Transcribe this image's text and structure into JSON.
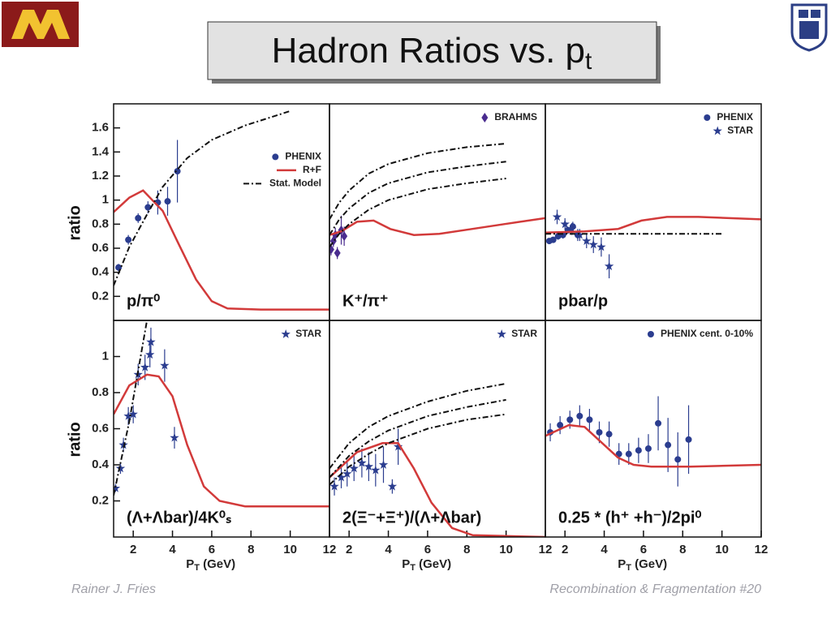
{
  "header": {
    "title": "Hadron Ratios vs. p",
    "title_sub": "t"
  },
  "footer": {
    "author": "Rainer J. Fries",
    "slide": "Recombination & Fragmentation  #20"
  },
  "chart_data": [
    {
      "type": "line",
      "label": "p/π⁰",
      "ylabel": "ratio",
      "legend": "right",
      "xlim": [
        1,
        12
      ],
      "ylim": [
        0,
        1.8
      ],
      "yticks": [
        0.2,
        0.4,
        0.6,
        0.8,
        1.0,
        1.2,
        1.4,
        1.6
      ],
      "series": [
        {
          "name": "PHENIX",
          "mark": "dot",
          "color": "#2b3d8f",
          "x": [
            1.25,
            1.75,
            2.25,
            2.75,
            3.25,
            3.75,
            4.25
          ],
          "values": [
            0.44,
            0.67,
            0.85,
            0.94,
            0.98,
            0.99,
            1.24
          ],
          "errors": [
            0.03,
            0.04,
            0.04,
            0.05,
            0.1,
            0.12,
            0.26
          ]
        },
        {
          "name": "R+F",
          "mark": "line",
          "color": "#d23a3a",
          "x": [
            1,
            1.8,
            2.5,
            3.5,
            4.3,
            5.2,
            6,
            6.8,
            8.5,
            12
          ],
          "values": [
            0.9,
            1.02,
            1.08,
            0.91,
            0.64,
            0.34,
            0.16,
            0.1,
            0.09,
            0.09
          ]
        },
        {
          "name": "Stat. Model",
          "mark": "dashdot",
          "color": "#111111",
          "x": [
            1,
            1.8,
            2.7,
            3.5,
            4.75,
            6,
            7.7,
            10
          ],
          "values": [
            0.29,
            0.61,
            0.88,
            1.11,
            1.35,
            1.5,
            1.62,
            1.74
          ]
        }
      ]
    },
    {
      "type": "line",
      "label": "K⁺/π⁺",
      "legend": "upper right",
      "xlim": [
        1,
        12
      ],
      "ylim": [
        0,
        1.8
      ],
      "series": [
        {
          "name": "BRAHMS",
          "mark": "diamond",
          "color": "#4a2c8f",
          "x": [
            1.08,
            1.2,
            1.3,
            1.4,
            1.6,
            1.75
          ],
          "values": [
            0.59,
            0.66,
            0.71,
            0.56,
            0.75,
            0.7
          ],
          "errors": [
            0.05,
            0.05,
            0.06,
            0.05,
            0.12,
            0.08
          ]
        },
        {
          "mark": "line",
          "color": "#d23a3a",
          "x": [
            1,
            1.6,
            2.4,
            3.25,
            4.1,
            5.3,
            6.6,
            8.25,
            9.9,
            12
          ],
          "values": [
            0.71,
            0.74,
            0.82,
            0.83,
            0.76,
            0.71,
            0.72,
            0.76,
            0.8,
            0.85
          ]
        },
        {
          "mark": "dashdot",
          "color": "#111111",
          "x": [
            1,
            1.5,
            2,
            3,
            4,
            6,
            8,
            10
          ],
          "values": [
            0.84,
            0.98,
            1.08,
            1.22,
            1.3,
            1.39,
            1.44,
            1.47
          ]
        },
        {
          "mark": "dashdot",
          "color": "#111111",
          "x": [
            1,
            1.5,
            2,
            3,
            4,
            6,
            8,
            10
          ],
          "values": [
            0.71,
            0.84,
            0.93,
            1.06,
            1.14,
            1.23,
            1.28,
            1.32
          ]
        },
        {
          "mark": "dashdot",
          "color": "#111111",
          "x": [
            1,
            1.5,
            2,
            3,
            4,
            6,
            8,
            10
          ],
          "values": [
            0.61,
            0.72,
            0.8,
            0.92,
            1.0,
            1.09,
            1.14,
            1.18
          ]
        }
      ]
    },
    {
      "type": "line",
      "label": "pbar/p",
      "legend": "upper right",
      "xlim": [
        1,
        12
      ],
      "ylim": [
        0,
        1.8
      ],
      "series": [
        {
          "name": "PHENIX",
          "mark": "dot",
          "color": "#2b3d8f",
          "x": [
            1.2,
            1.4,
            1.65,
            1.9,
            2.15,
            2.4,
            2.65
          ],
          "values": [
            0.66,
            0.67,
            0.7,
            0.71,
            0.75,
            0.78,
            0.71
          ],
          "errors": [
            0.02,
            0.02,
            0.03,
            0.03,
            0.03,
            0.04,
            0.05
          ]
        },
        {
          "name": "STAR",
          "mark": "star",
          "color": "#2b3d8f",
          "x": [
            1.6,
            2,
            2.35,
            2.75,
            3.1,
            3.45,
            3.85,
            4.25
          ],
          "values": [
            0.86,
            0.8,
            0.76,
            0.71,
            0.66,
            0.63,
            0.61,
            0.45
          ],
          "errors": [
            0.06,
            0.05,
            0.05,
            0.05,
            0.06,
            0.07,
            0.08,
            0.1
          ]
        },
        {
          "mark": "line",
          "color": "#d23a3a",
          "x": [
            1,
            3,
            4.7,
            5.9,
            7.2,
            8.8,
            12
          ],
          "values": [
            0.73,
            0.74,
            0.76,
            0.83,
            0.86,
            0.86,
            0.84
          ]
        },
        {
          "mark": "dashdot",
          "color": "#111111",
          "x": [
            1,
            10
          ],
          "values": [
            0.72,
            0.72
          ]
        }
      ]
    },
    {
      "type": "line",
      "label": "(Λ+Λbar)/4K⁰ₛ",
      "ylabel": "ratio",
      "xlabel": "P",
      "xlabel_sub": "T",
      "xlabel_rest": " (GeV)",
      "legend": "upper right",
      "xlim": [
        1,
        12
      ],
      "ylim": [
        0,
        1.2
      ],
      "yticks": [
        0.2,
        0.4,
        0.6,
        0.8,
        1.0
      ],
      "xticks": [
        2,
        4,
        6,
        8,
        10,
        12
      ],
      "series": [
        {
          "name": "STAR",
          "mark": "star",
          "color": "#2b3d8f",
          "x": [
            1.1,
            1.35,
            1.5,
            1.75,
            2,
            2.25,
            2.6,
            2.85,
            2.9,
            3.6,
            4.1
          ],
          "values": [
            0.27,
            0.38,
            0.51,
            0.67,
            0.68,
            0.9,
            0.94,
            1.01,
            1.08,
            0.95,
            0.55
          ],
          "errors": [
            0.02,
            0.03,
            0.04,
            0.05,
            0.05,
            0.06,
            0.07,
            0.07,
            0.08,
            0.09,
            0.06
          ]
        },
        {
          "mark": "line",
          "color": "#d23a3a",
          "x": [
            1,
            1.8,
            2.7,
            3.3,
            4,
            4.75,
            5.6,
            6.4,
            7.7,
            12
          ],
          "values": [
            0.68,
            0.84,
            0.9,
            0.89,
            0.78,
            0.51,
            0.28,
            0.2,
            0.17,
            0.17
          ]
        },
        {
          "mark": "dashdot",
          "color": "#111111",
          "x": [
            1,
            1.8,
            2.7
          ],
          "values": [
            0.23,
            0.64,
            1.2
          ]
        }
      ]
    },
    {
      "type": "line",
      "label": "2(Ξ⁻+Ξ⁺)/(Λ+Λbar)",
      "xlabel": "P",
      "xlabel_sub": "T",
      "xlabel_rest": " (GeV)",
      "legend": "upper right",
      "xlim": [
        1,
        12
      ],
      "ylim": [
        0,
        1.2
      ],
      "xticks": [
        2,
        4,
        6,
        8,
        10,
        12
      ],
      "series": [
        {
          "name": "STAR",
          "mark": "star",
          "color": "#2b3d8f",
          "x": [
            1.25,
            1.6,
            1.9,
            2.25,
            2.65,
            3,
            3.35,
            3.75,
            4.2,
            4.5
          ],
          "values": [
            0.28,
            0.33,
            0.35,
            0.38,
            0.41,
            0.39,
            0.37,
            0.4,
            0.28,
            0.5
          ],
          "errors": [
            0.05,
            0.06,
            0.07,
            0.07,
            0.08,
            0.08,
            0.09,
            0.1,
            0.04,
            0.1
          ]
        },
        {
          "mark": "line",
          "color": "#d23a3a",
          "x": [
            1,
            2.4,
            3.7,
            4.5,
            5.3,
            6.2,
            7.25,
            8.3,
            12
          ],
          "values": [
            0.33,
            0.47,
            0.52,
            0.52,
            0.38,
            0.19,
            0.05,
            0.01,
            0.0
          ]
        },
        {
          "mark": "dashdot",
          "color": "#111111",
          "x": [
            1,
            2,
            3,
            4,
            6,
            8,
            10
          ],
          "values": [
            0.38,
            0.52,
            0.61,
            0.67,
            0.75,
            0.81,
            0.85
          ]
        },
        {
          "mark": "dashdot",
          "color": "#111111",
          "x": [
            1,
            2,
            3,
            4,
            6,
            8,
            10
          ],
          "values": [
            0.33,
            0.45,
            0.53,
            0.59,
            0.67,
            0.72,
            0.76
          ]
        },
        {
          "mark": "dashdot",
          "color": "#111111",
          "x": [
            1,
            2,
            3,
            4,
            6,
            8,
            10
          ],
          "values": [
            0.29,
            0.39,
            0.46,
            0.52,
            0.6,
            0.65,
            0.68
          ]
        }
      ]
    },
    {
      "type": "line",
      "label": "0.25 * (h⁺ +h⁻)/2pi⁰",
      "xlabel": "P",
      "xlabel_sub": "T",
      "xlabel_rest": " (GeV)",
      "legend": "upper right",
      "xlim": [
        1,
        12
      ],
      "ylim": [
        0,
        1.2
      ],
      "xticks": [
        2,
        4,
        6,
        8,
        10,
        12
      ],
      "series": [
        {
          "name": "PHENIX cent. 0-10%",
          "mark": "dot",
          "color": "#2b3d8f",
          "x": [
            1.25,
            1.75,
            2.25,
            2.75,
            3.25,
            3.75,
            4.25,
            4.75,
            5.25,
            5.75,
            6.25,
            6.75,
            7.25,
            7.75,
            8.3
          ],
          "values": [
            0.58,
            0.62,
            0.65,
            0.67,
            0.65,
            0.58,
            0.57,
            0.46,
            0.46,
            0.48,
            0.49,
            0.63,
            0.51,
            0.43,
            0.54
          ],
          "errors": [
            0.05,
            0.05,
            0.05,
            0.06,
            0.06,
            0.06,
            0.07,
            0.06,
            0.06,
            0.07,
            0.08,
            0.15,
            0.15,
            0.15,
            0.19
          ]
        },
        {
          "mark": "line",
          "color": "#d23a3a",
          "x": [
            1,
            2.2,
            3,
            3.8,
            4.7,
            5.5,
            6.4,
            8.4,
            12
          ],
          "values": [
            0.56,
            0.62,
            0.61,
            0.53,
            0.44,
            0.4,
            0.39,
            0.39,
            0.4
          ]
        }
      ]
    }
  ]
}
